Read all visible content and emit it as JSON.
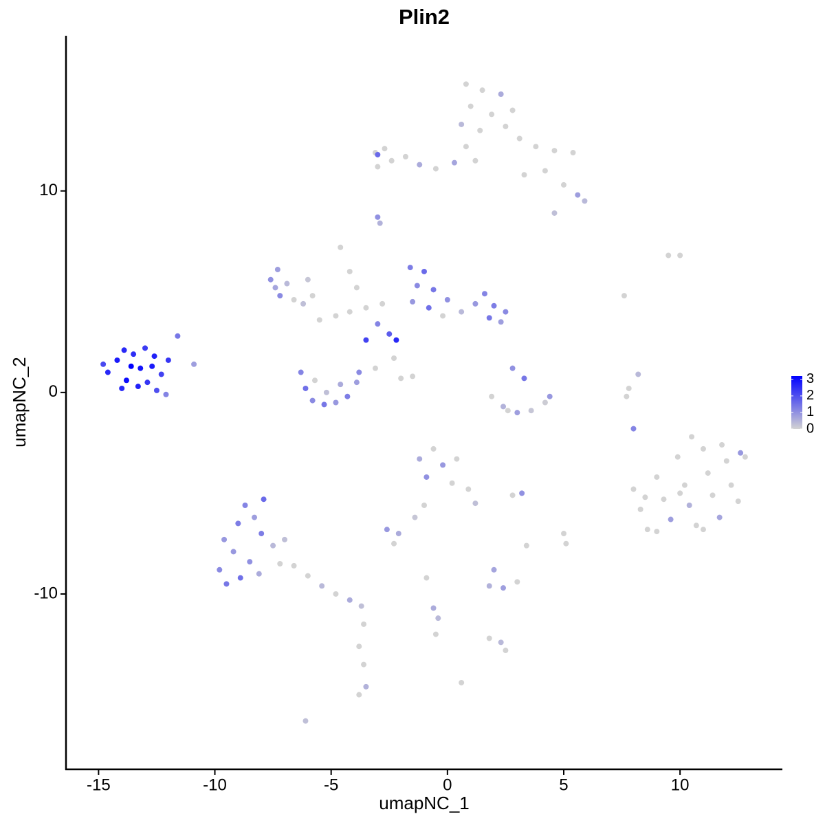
{
  "chart_data": {
    "type": "scatter",
    "title": "Plin2",
    "x_label": "umapNC_1",
    "y_label": "umapNC_2",
    "xlim": [
      -16.4,
      14.4
    ],
    "ylim": [
      -18.7,
      17.7
    ],
    "xticks": [
      -15,
      -10,
      -5,
      0,
      5,
      10
    ],
    "yticks": [
      -10,
      0,
      10
    ],
    "x": [
      -14.6,
      -14.2,
      -13.8,
      -13.5,
      -13.2,
      -12.9,
      -12.6,
      -12.3,
      -14.0,
      -13.6,
      -13.0,
      -12.5,
      -14.8,
      -13.9,
      -12.7,
      -12.1,
      -11.6,
      -10.9,
      -13.3,
      -12.0,
      0.8,
      1.5,
      2.3,
      1.0,
      1.9,
      2.8,
      0.6,
      1.4,
      2.5,
      3.1,
      3.8,
      4.6,
      5.4,
      4.2,
      5.0,
      5.6,
      5.9,
      4.6,
      3.3,
      1.2,
      -3.1,
      -2.7,
      -3.0,
      -2.4,
      -1.8,
      -1.2,
      -0.5,
      0.3,
      0.8,
      -3.0,
      -3.0,
      -2.9,
      -4.6,
      -4.2,
      -3.9,
      -1.6,
      -1.0,
      -1.3,
      -0.6,
      -1.5,
      -0.8,
      0.0,
      0.6,
      1.2,
      1.6,
      2.0,
      2.5,
      2.3,
      1.8,
      -0.2,
      -2.2,
      -2.5,
      -3.0,
      -3.5,
      -2.3,
      -5.5,
      -4.8,
      -4.2,
      -3.5,
      -2.8,
      -5.8,
      -6.0,
      -3.1,
      -2.0,
      -1.5,
      -7.6,
      -7.3,
      -6.9,
      -7.2,
      -6.6,
      -6.2,
      -7.4,
      -6.3,
      -6.1,
      -5.8,
      -5.3,
      -4.8,
      -4.3,
      -3.9,
      -3.8,
      -5.2,
      -4.6,
      -5.7,
      2.8,
      3.3,
      1.9,
      2.4,
      3.0,
      3.6,
      4.2,
      4.4,
      2.6,
      9.5,
      10.0,
      7.6,
      7.8,
      7.7,
      8.2,
      8.0,
      8.0,
      8.3,
      8.6,
      9.0,
      9.3,
      9.6,
      9.9,
      10.2,
      10.4,
      10.7,
      11.0,
      11.2,
      11.4,
      11.7,
      12.0,
      12.2,
      12.5,
      12.8,
      10.5,
      9.0,
      11.0,
      12.6,
      10.0,
      8.5,
      11.8,
      -1.2,
      -0.6,
      -0.2,
      0.4,
      -0.9,
      0.2,
      0.9,
      1.2,
      -1.0,
      -1.4,
      3.2,
      2.8,
      -9.8,
      -9.5,
      -9.2,
      -9.0,
      -8.7,
      -8.3,
      -8.0,
      -8.5,
      -8.9,
      -8.1,
      -7.5,
      -7.9,
      -7.2,
      -6.6,
      -7.0,
      -9.6,
      -6.0,
      -5.4,
      -4.8,
      -4.2,
      -3.7,
      -3.6,
      -3.8,
      -3.6,
      -3.5,
      -3.8,
      -6.1,
      -2.6,
      -2.1,
      -2.3,
      1.8,
      2.4,
      3.0,
      2.0,
      2.3,
      2.5,
      1.8,
      -0.9,
      -0.6,
      -0.4,
      -0.5,
      0.6,
      5.0,
      5.1,
      3.4
    ],
    "y": [
      1.0,
      1.6,
      0.6,
      1.9,
      1.2,
      0.5,
      1.8,
      0.9,
      0.2,
      1.3,
      2.2,
      0.1,
      1.4,
      2.1,
      1.3,
      -0.1,
      2.8,
      1.4,
      0.3,
      1.6,
      15.3,
      15.0,
      14.8,
      14.2,
      13.8,
      14.0,
      13.3,
      13.0,
      13.2,
      12.6,
      12.2,
      12.0,
      11.9,
      11.0,
      10.3,
      9.8,
      9.5,
      8.9,
      10.8,
      11.5,
      11.9,
      12.1,
      11.2,
      11.5,
      11.7,
      11.3,
      11.1,
      11.4,
      12.2,
      11.8,
      8.7,
      8.4,
      7.2,
      6.0,
      5.2,
      6.2,
      6.0,
      5.3,
      5.1,
      4.5,
      4.2,
      4.6,
      4.0,
      4.4,
      4.9,
      4.3,
      4.0,
      3.5,
      3.7,
      3.8,
      2.6,
      2.9,
      3.4,
      2.6,
      1.7,
      3.6,
      3.8,
      4.0,
      4.2,
      4.4,
      4.8,
      5.6,
      1.2,
      0.7,
      0.8,
      5.6,
      6.1,
      5.4,
      4.8,
      4.6,
      4.4,
      5.2,
      1.0,
      0.2,
      -0.4,
      -0.6,
      -0.5,
      -0.2,
      0.5,
      1.0,
      0.0,
      0.4,
      0.6,
      1.2,
      0.7,
      -0.2,
      -0.7,
      -1.0,
      -0.9,
      -0.5,
      -0.2,
      -0.9,
      6.8,
      6.8,
      4.8,
      0.2,
      -0.2,
      0.9,
      -1.8,
      -4.8,
      -5.8,
      -6.8,
      -4.2,
      -5.3,
      -6.3,
      -3.2,
      -4.6,
      -5.6,
      -6.6,
      -2.8,
      -4.0,
      -5.1,
      -6.2,
      -3.4,
      -4.6,
      -5.4,
      -3.2,
      -2.2,
      -6.9,
      -6.8,
      -3.0,
      -5.0,
      -5.2,
      -2.6,
      -3.3,
      -2.8,
      -3.6,
      -3.3,
      -4.2,
      -4.5,
      -4.8,
      -5.5,
      -5.6,
      -6.2,
      -5.0,
      -5.1,
      -8.8,
      -9.5,
      -7.9,
      -6.5,
      -5.6,
      -6.2,
      -7.0,
      -8.4,
      -9.2,
      -9.0,
      -7.6,
      -5.3,
      -8.5,
      -8.6,
      -7.3,
      -7.3,
      -9.1,
      -9.6,
      -10.0,
      -10.3,
      -10.6,
      -11.5,
      -12.6,
      -13.5,
      -14.6,
      -15.0,
      -16.3,
      -6.8,
      -7.0,
      -7.5,
      -9.6,
      -9.7,
      -9.4,
      -8.8,
      -12.4,
      -12.8,
      -12.2,
      -9.2,
      -10.7,
      -11.2,
      -12.0,
      -14.4,
      -7.0,
      -7.5,
      -7.6
    ],
    "values": [
      2.6,
      2.8,
      3.0,
      2.5,
      2.9,
      2.4,
      2.7,
      2.2,
      2.6,
      3.2,
      2.3,
      2.0,
      2.1,
      2.6,
      2.8,
      1.2,
      1.4,
      0.8,
      2.7,
      2.4,
      0,
      0,
      0.6,
      0,
      0,
      0,
      0.4,
      0,
      0,
      0,
      0,
      0,
      0,
      0,
      0,
      0.8,
      0.4,
      0.3,
      0,
      0,
      0,
      0,
      0,
      0,
      0,
      0.6,
      0,
      0.7,
      0,
      1.6,
      1.0,
      0.5,
      0,
      0,
      0,
      1.3,
      1.6,
      1.1,
      1.4,
      0.9,
      1.5,
      1.0,
      0.4,
      0.9,
      1.2,
      1.3,
      1.1,
      0.8,
      1.4,
      0,
      2.6,
      1.8,
      1.2,
      2.2,
      0,
      0,
      0,
      0,
      0,
      0,
      0,
      0.2,
      0,
      0,
      0,
      1.0,
      0.8,
      0.4,
      1.1,
      0,
      0.3,
      0.7,
      1.2,
      1.5,
      1.1,
      1.4,
      0.9,
      1.3,
      0.8,
      1.1,
      0.3,
      0.6,
      0,
      1.0,
      1.4,
      0,
      0.5,
      0.8,
      0.2,
      0.1,
      0.9,
      0,
      0,
      0,
      0,
      0,
      0,
      0.4,
      1.2,
      0,
      0,
      0,
      0,
      0,
      0.8,
      0,
      0,
      0.5,
      0,
      0,
      0,
      0,
      0.7,
      0,
      0,
      0,
      0,
      0,
      0,
      0,
      0.9,
      0,
      0,
      0,
      0.6,
      0,
      0.9,
      0,
      1.0,
      0,
      0,
      0.3,
      0,
      0.2,
      1.0,
      0,
      1.1,
      1.4,
      0.9,
      1.3,
      1.2,
      0.8,
      1.3,
      1.0,
      1.5,
      0.6,
      0.4,
      1.6,
      0,
      0,
      0.3,
      0.9,
      0,
      0.4,
      0,
      0.6,
      0.3,
      0,
      0,
      0,
      0.5,
      0,
      0.3,
      0.9,
      0.6,
      0,
      0.5,
      0.8,
      0,
      0.7,
      0.4,
      0,
      0,
      0,
      0.6,
      0.4,
      0,
      0,
      0,
      0,
      0
    ],
    "colorscale": {
      "low_color": "#d3d3d3",
      "high_color": "#0000ff",
      "lim": [
        0,
        3.2
      ],
      "ticks": [
        0,
        1,
        2,
        3
      ]
    }
  }
}
